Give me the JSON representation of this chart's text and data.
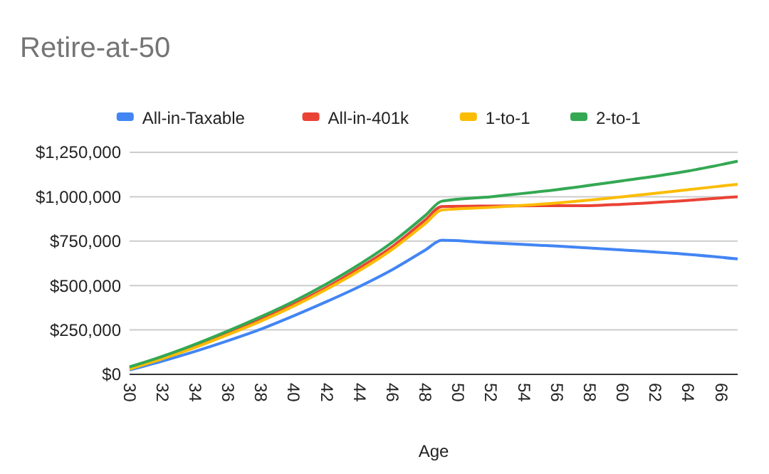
{
  "chart_data": {
    "type": "line",
    "title": "Retire-at-50",
    "xlabel": "Age",
    "xlim": [
      30,
      67
    ],
    "xticks": [
      30,
      32,
      34,
      36,
      38,
      40,
      42,
      44,
      46,
      48,
      50,
      52,
      54,
      56,
      58,
      60,
      62,
      64,
      66
    ],
    "ylim": [
      0,
      1250000
    ],
    "yticks": [
      {
        "value": 0,
        "label": "$0"
      },
      {
        "value": 250000,
        "label": "$250,000"
      },
      {
        "value": 500000,
        "label": "$500,000"
      },
      {
        "value": 750000,
        "label": "$750,000"
      },
      {
        "value": 1000000,
        "label": "$1,000,000"
      },
      {
        "value": 1250000,
        "label": "$1,250,000"
      }
    ],
    "grid": "y",
    "legend": "top",
    "marker": "none",
    "line_style": "solid",
    "series": [
      {
        "name": "All-in-Taxable",
        "color": "#4285f4",
        "x": [
          30,
          32,
          34,
          36,
          38,
          40,
          42,
          44,
          46,
          48,
          49,
          52,
          56,
          60,
          64,
          67
        ],
        "values": [
          25000,
          75000,
          130000,
          190000,
          255000,
          330000,
          410000,
          495000,
          590000,
          700000,
          755000,
          740000,
          722000,
          700000,
          675000,
          650000
        ]
      },
      {
        "name": "All-in-401k",
        "color": "#ea4335",
        "x": [
          30,
          32,
          34,
          36,
          38,
          40,
          42,
          44,
          46,
          48,
          49,
          52,
          56,
          58,
          60,
          64,
          67
        ],
        "values": [
          35000,
          95000,
          160000,
          232000,
          310000,
          395000,
          490000,
          600000,
          720000,
          870000,
          945000,
          948000,
          950000,
          950000,
          958000,
          980000,
          1000000
        ]
      },
      {
        "name": "1-to-1",
        "color": "#fbbc04",
        "x": [
          30,
          32,
          34,
          36,
          38,
          40,
          42,
          44,
          46,
          48,
          49,
          52,
          56,
          60,
          64,
          67
        ],
        "values": [
          30000,
          88000,
          152000,
          224000,
          300000,
          385000,
          480000,
          585000,
          705000,
          850000,
          925000,
          940000,
          965000,
          1000000,
          1040000,
          1070000
        ]
      },
      {
        "name": "2-to-1",
        "color": "#34a853",
        "x": [
          30,
          32,
          34,
          36,
          38,
          40,
          42,
          44,
          46,
          48,
          49,
          52,
          56,
          60,
          64,
          67
        ],
        "values": [
          42000,
          102000,
          170000,
          245000,
          325000,
          412000,
          510000,
          620000,
          745000,
          895000,
          975000,
          1000000,
          1040000,
          1090000,
          1145000,
          1200000
        ]
      }
    ]
  }
}
